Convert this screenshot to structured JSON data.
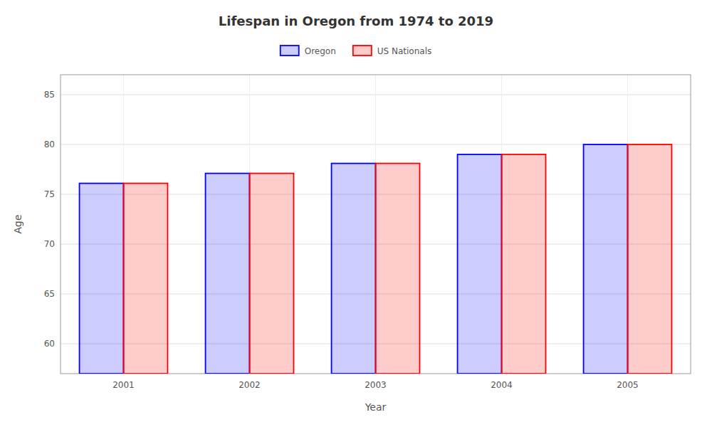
{
  "chart_data": {
    "type": "bar",
    "title": "Lifespan in Oregon from 1974 to 2019",
    "xlabel": "Year",
    "ylabel": "Age",
    "categories": [
      "2001",
      "2002",
      "2003",
      "2004",
      "2005"
    ],
    "series": [
      {
        "name": "Oregon",
        "color": "#0000ff",
        "values": [
          76.1,
          77.1,
          78.1,
          79.0,
          80.0
        ]
      },
      {
        "name": "US Nationals",
        "color": "#ff0000",
        "values": [
          76.1,
          77.1,
          78.1,
          79.0,
          80.0
        ]
      }
    ],
    "ylim": [
      57,
      87
    ],
    "yticks": [
      60,
      65,
      70,
      75,
      80,
      85
    ],
    "grid": true,
    "legend": "top"
  }
}
